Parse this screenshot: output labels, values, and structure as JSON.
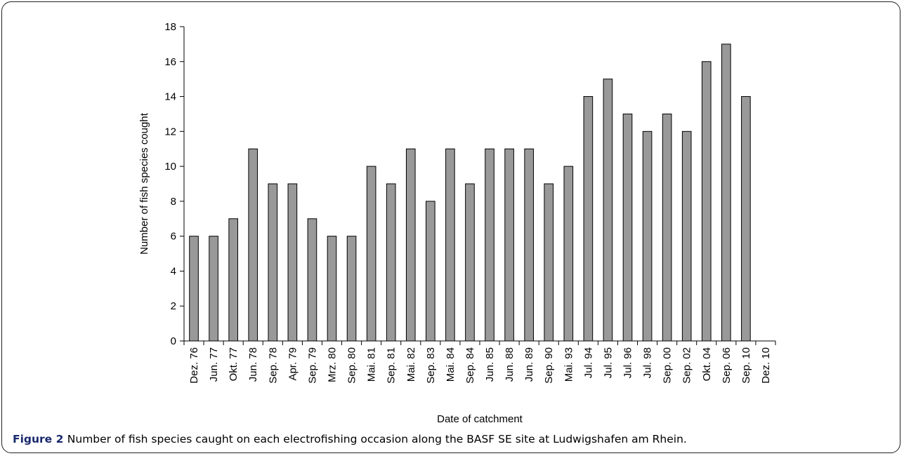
{
  "caption": {
    "label": "Figure 2",
    "text": "Number of fish species caught on each electrofishing occasion along the BASF SE site at Ludwigshafen am Rhein."
  },
  "chart_data": {
    "type": "bar",
    "xlabel": "Date of catchment",
    "ylabel": "Number of fish species cought",
    "ylim": [
      0,
      18
    ],
    "yticks": [
      0,
      2,
      4,
      6,
      8,
      10,
      12,
      14,
      16,
      18
    ],
    "grid": false,
    "bar_color": "#999999",
    "categories": [
      "Dez. 76",
      "Jun. 77",
      "Okt. 77",
      "Jun. 78",
      "Sep. 78",
      "Apr. 79",
      "Sep. 79",
      "Mrz. 80",
      "Sep. 80",
      "Mai. 81",
      "Sep. 81",
      "Mai. 82",
      "Sep. 83",
      "Mai. 84",
      "Sep. 84",
      "Jun. 85",
      "Jun. 88",
      "Jun. 89",
      "Sep. 90",
      "Mai. 93",
      "Jul. 94",
      "Jul. 95",
      "Jul. 96",
      "Jul. 98",
      "Sep. 00",
      "Sep. 02",
      "Okt. 04",
      "Sep. 06",
      "Sep. 10",
      "Dez. 10"
    ],
    "values": [
      6,
      6,
      7,
      11,
      9,
      9,
      7,
      6,
      6,
      10,
      9,
      11,
      8,
      11,
      9,
      11,
      11,
      11,
      9,
      10,
      14,
      15,
      13,
      12,
      13,
      12,
      16,
      17,
      14,
      0
    ]
  }
}
